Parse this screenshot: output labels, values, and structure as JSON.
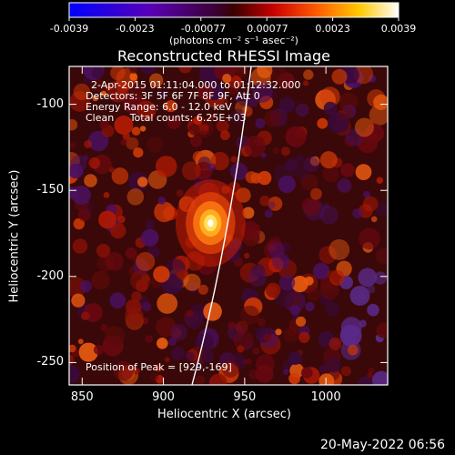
{
  "colorbar": {
    "ticks": [
      "-0.0039",
      "-0.0023",
      "-0.00077",
      "0.00077",
      "0.0023",
      "0.0039"
    ],
    "unit": "(photons cm⁻² s⁻¹ asec⁻²)"
  },
  "plot": {
    "title": "Reconstructed RHESSI Image",
    "info_time": "2-Apr-2015 01:11:04.000 to 01:12:32.000",
    "info_detectors": "Detectors: 3F 5F 6F 7F 8F 9F, Att 0",
    "info_energy": "Energy Range: 6.0 - 12.0 keV",
    "info_clean": "Clean     Total counts: 6.25E+03",
    "peak_label": "Position of Peak = [929,-169]",
    "xlabel": "Heliocentric X (arcsec)",
    "ylabel": "Heliocentric Y (arcsec)",
    "x_ticks": [
      "850",
      "900",
      "950",
      "1000"
    ],
    "y_ticks": [
      "-100",
      "-150",
      "-200",
      "-250"
    ],
    "xlim": [
      842,
      1038
    ],
    "ylim": [
      -263,
      -78
    ],
    "peak": {
      "x": 929,
      "y": -169,
      "value": 0.0039
    },
    "colors": {
      "background": "#000000",
      "axis": "#ffffff",
      "limb": "#ffffff"
    },
    "colormap": "rainbow-hot (negative: blue to purple, positive: red to yellow to white)"
  },
  "footer": {
    "timestamp": "20-May-2022 06:56"
  }
}
